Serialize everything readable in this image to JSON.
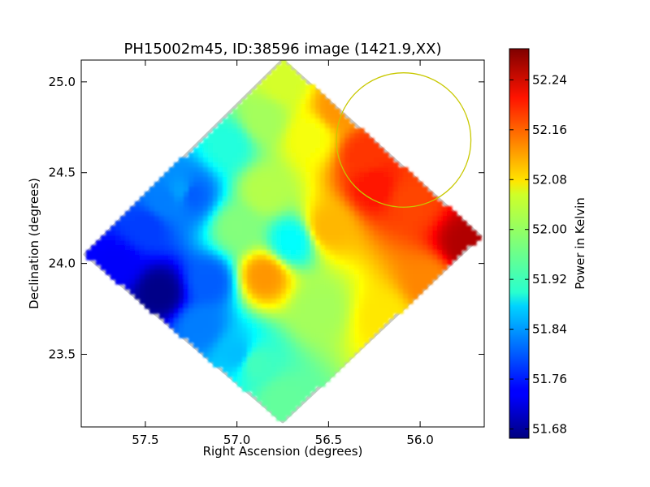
{
  "chart_data": {
    "type": "heatmap",
    "title": "PH15002m45, ID:38596 image (1421.9,XX)",
    "xlabel": "Right Ascension (degrees)",
    "ylabel": "Declination (degrees)",
    "xlim": [
      57.85,
      55.65
    ],
    "ylim": [
      23.1,
      25.12
    ],
    "x_inverted": true,
    "xticks": [
      57.5,
      57.0,
      56.5,
      56.0
    ],
    "xtick_labels": [
      "57.5",
      "57.0",
      "56.5",
      "56.0"
    ],
    "yticks": [
      23.5,
      24.0,
      24.5,
      25.0
    ],
    "ytick_labels": [
      "23.5",
      "24.0",
      "24.5",
      "25.0"
    ],
    "colormap": "jet",
    "colorbar": {
      "label": "Power in Kelvin",
      "range": [
        51.665,
        52.29
      ],
      "ticks": [
        51.68,
        51.76,
        51.84,
        51.92,
        52.0,
        52.08,
        52.16,
        52.24
      ],
      "tick_labels": [
        "51.68",
        "51.76",
        "51.84",
        "51.92",
        "52.00",
        "52.08",
        "52.16",
        "52.24"
      ]
    },
    "footprint": {
      "shape": "diamond",
      "vertices": [
        [
          56.75,
          25.12
        ],
        [
          55.67,
          24.15
        ],
        [
          56.75,
          23.13
        ],
        [
          57.83,
          24.05
        ]
      ]
    },
    "field_samples": [
      {
        "x": 57.42,
        "y": 23.84,
        "v": 51.67
      },
      {
        "x": 57.65,
        "y": 24.0,
        "v": 51.74
      },
      {
        "x": 57.5,
        "y": 24.2,
        "v": 51.78
      },
      {
        "x": 57.3,
        "y": 24.4,
        "v": 51.84
      },
      {
        "x": 57.25,
        "y": 24.38,
        "v": 51.8
      },
      {
        "x": 57.15,
        "y": 23.9,
        "v": 51.8
      },
      {
        "x": 57.2,
        "y": 23.65,
        "v": 51.82
      },
      {
        "x": 57.0,
        "y": 23.5,
        "v": 51.86
      },
      {
        "x": 57.05,
        "y": 24.65,
        "v": 51.92
      },
      {
        "x": 56.85,
        "y": 24.8,
        "v": 52.0
      },
      {
        "x": 56.75,
        "y": 25.0,
        "v": 52.03
      },
      {
        "x": 56.6,
        "y": 24.7,
        "v": 52.05
      },
      {
        "x": 56.45,
        "y": 24.85,
        "v": 52.12
      },
      {
        "x": 56.3,
        "y": 24.6,
        "v": 52.18
      },
      {
        "x": 56.25,
        "y": 24.42,
        "v": 52.2
      },
      {
        "x": 56.05,
        "y": 24.35,
        "v": 52.17
      },
      {
        "x": 55.75,
        "y": 24.1,
        "v": 52.26
      },
      {
        "x": 55.95,
        "y": 23.9,
        "v": 52.13
      },
      {
        "x": 56.2,
        "y": 23.7,
        "v": 52.07
      },
      {
        "x": 56.5,
        "y": 24.2,
        "v": 52.1
      },
      {
        "x": 56.85,
        "y": 23.93,
        "v": 52.12
      },
      {
        "x": 56.7,
        "y": 24.12,
        "v": 51.9
      },
      {
        "x": 56.55,
        "y": 23.75,
        "v": 52.0
      },
      {
        "x": 56.75,
        "y": 23.25,
        "v": 51.96
      },
      {
        "x": 56.9,
        "y": 23.45,
        "v": 51.94
      },
      {
        "x": 57.0,
        "y": 24.2,
        "v": 51.98
      },
      {
        "x": 56.85,
        "y": 24.4,
        "v": 52.01
      },
      {
        "x": 57.4,
        "y": 24.35,
        "v": 51.82
      }
    ],
    "annotation_circle": {
      "center": [
        56.09,
        24.68
      ],
      "radius_deg_dec": 0.37,
      "color": "#c8c800"
    }
  }
}
